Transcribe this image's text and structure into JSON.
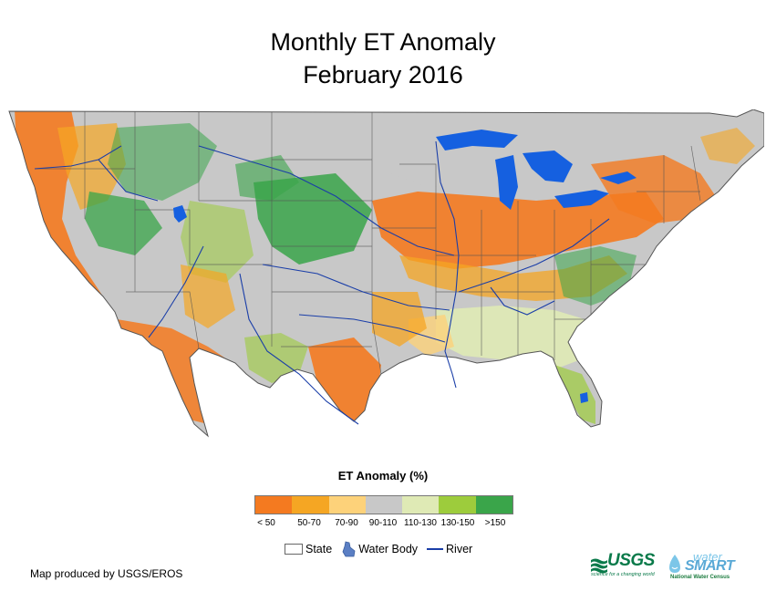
{
  "title": {
    "line1": "Monthly ET Anomaly",
    "line2": "February 2016"
  },
  "legend": {
    "title": "ET Anomaly (%)",
    "classes": [
      {
        "label": "< 50",
        "color": "#f47a20"
      },
      {
        "label": "50-70",
        "color": "#f5a623"
      },
      {
        "label": "70-90",
        "color": "#fdd27a"
      },
      {
        "label": "90-110",
        "color": "#c8c8c8"
      },
      {
        "label": "110-130",
        "color": "#dfeab5"
      },
      {
        "label": "130-150",
        "color": "#9dcc3c"
      },
      {
        "label": ">150",
        "color": "#3aa54a"
      }
    ]
  },
  "reference_legend": {
    "state": "State",
    "water_body": "Water Body",
    "river": "River"
  },
  "colors": {
    "water": "#1560e0",
    "river": "#1a3ea8",
    "state_line": "#555555",
    "background": "#c8c8c8"
  },
  "credit": "Map produced by USGS/EROS",
  "logos": {
    "usgs": "USGS",
    "usgs_tagline": "science for a changing world",
    "watersmart_water": "water",
    "watersmart_smart": "SMART",
    "watersmart_tagline": "National Water Census"
  }
}
